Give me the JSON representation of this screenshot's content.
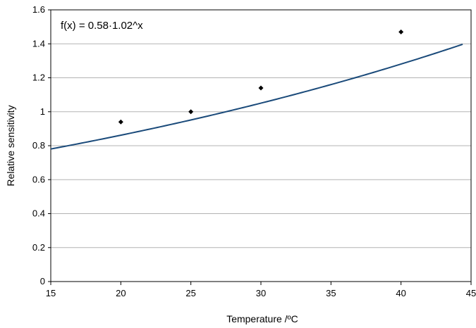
{
  "chart_data": {
    "type": "scatter",
    "xlabel": "Temperature /ºC",
    "ylabel": "Relative sensitivity",
    "xlim": [
      15,
      45
    ],
    "ylim": [
      0,
      1.6
    ],
    "x_ticks": [
      "15",
      "20",
      "25",
      "30",
      "35",
      "40",
      "45"
    ],
    "y_ticks": [
      "0",
      "0.2",
      "0.4",
      "0.6",
      "0.8",
      "1",
      "1.2",
      "1.4",
      "1.6"
    ],
    "grid": "horizontal",
    "annotation": "f(x) = 0.58·1.02^x",
    "series": [
      {
        "kind": "points",
        "x": [
          20,
          25,
          30,
          40
        ],
        "y": [
          0.94,
          1.0,
          1.14,
          1.47
        ],
        "color": "#000000"
      },
      {
        "kind": "fit",
        "function": "0.58*1.02^x",
        "a": 0.58,
        "b": 1.02,
        "x_range": [
          15,
          44.4
        ],
        "color": "#1a4a7a"
      }
    ]
  }
}
